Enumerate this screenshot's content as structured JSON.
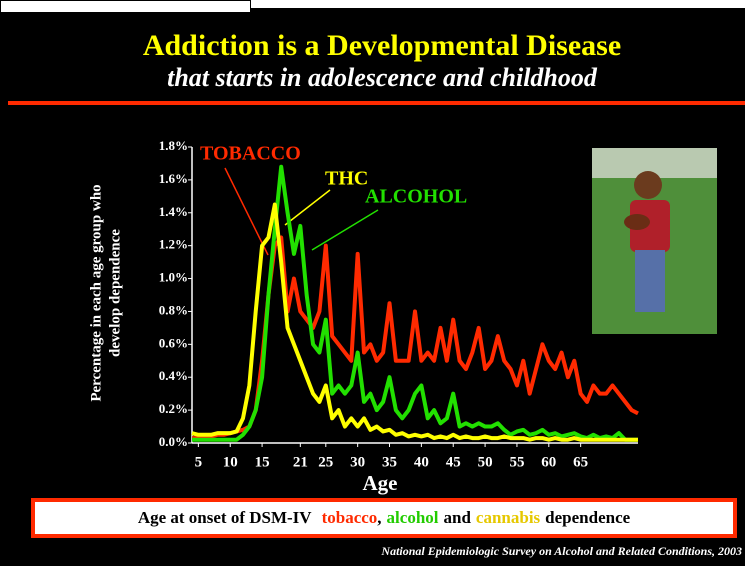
{
  "chart_data": {
    "type": "line",
    "title": "Addiction is a Developmental Disease",
    "subtitle": "that starts in adolescence and childhood",
    "ylabel": [
      "Percentage in each age group who",
      "develop dependence"
    ],
    "xlabel": "Age",
    "x": [
      4,
      5,
      6,
      7,
      8,
      9,
      10,
      11,
      12,
      13,
      14,
      15,
      16,
      17,
      18,
      19,
      20,
      21,
      22,
      23,
      24,
      25,
      26,
      27,
      28,
      29,
      30,
      31,
      32,
      33,
      34,
      35,
      36,
      37,
      38,
      39,
      40,
      41,
      42,
      43,
      44,
      45,
      46,
      47,
      48,
      49,
      50,
      51,
      52,
      53,
      54,
      55,
      56,
      57,
      58,
      59,
      60,
      61,
      62,
      63,
      64,
      65,
      66,
      67,
      68,
      69,
      70,
      71,
      72,
      73,
      74
    ],
    "series": [
      {
        "name": "TOBACCO",
        "color": "#ff2a00",
        "values": [
          0.03,
          0.03,
          0.04,
          0.04,
          0.05,
          0.05,
          0.06,
          0.07,
          0.08,
          0.1,
          0.2,
          0.5,
          0.9,
          1.2,
          1.25,
          0.8,
          1.0,
          0.8,
          0.75,
          0.7,
          0.8,
          1.2,
          0.65,
          0.6,
          0.55,
          0.5,
          1.15,
          0.55,
          0.6,
          0.5,
          0.55,
          0.85,
          0.5,
          0.5,
          0.5,
          0.8,
          0.5,
          0.55,
          0.5,
          0.7,
          0.5,
          0.75,
          0.5,
          0.45,
          0.55,
          0.7,
          0.45,
          0.5,
          0.65,
          0.5,
          0.45,
          0.35,
          0.5,
          0.3,
          0.45,
          0.6,
          0.5,
          0.45,
          0.55,
          0.4,
          0.5,
          0.3,
          0.25,
          0.35,
          0.3,
          0.3,
          0.35,
          0.3,
          0.25,
          0.2,
          0.18
        ]
      },
      {
        "name": "ALCOHOL",
        "color": "#22e000",
        "values": [
          0.02,
          0.02,
          0.02,
          0.02,
          0.02,
          0.02,
          0.02,
          0.02,
          0.05,
          0.1,
          0.2,
          0.4,
          0.9,
          1.3,
          1.68,
          1.4,
          1.15,
          1.32,
          0.9,
          0.6,
          0.55,
          0.75,
          0.3,
          0.35,
          0.3,
          0.35,
          0.55,
          0.25,
          0.3,
          0.2,
          0.25,
          0.4,
          0.2,
          0.15,
          0.2,
          0.3,
          0.35,
          0.15,
          0.2,
          0.12,
          0.15,
          0.3,
          0.1,
          0.12,
          0.1,
          0.12,
          0.1,
          0.1,
          0.12,
          0.08,
          0.05,
          0.07,
          0.08,
          0.05,
          0.06,
          0.08,
          0.05,
          0.06,
          0.04,
          0.05,
          0.06,
          0.04,
          0.03,
          0.05,
          0.03,
          0.04,
          0.03,
          0.06,
          0.02,
          0.02,
          0.02
        ]
      },
      {
        "name": "THC",
        "color": "#ffff00",
        "values": [
          0.06,
          0.05,
          0.05,
          0.05,
          0.06,
          0.06,
          0.06,
          0.07,
          0.15,
          0.35,
          0.8,
          1.2,
          1.25,
          1.45,
          1.1,
          0.7,
          0.6,
          0.5,
          0.4,
          0.3,
          0.25,
          0.35,
          0.15,
          0.2,
          0.1,
          0.15,
          0.1,
          0.15,
          0.08,
          0.1,
          0.07,
          0.08,
          0.05,
          0.06,
          0.04,
          0.05,
          0.04,
          0.05,
          0.03,
          0.04,
          0.03,
          0.05,
          0.03,
          0.04,
          0.03,
          0.03,
          0.04,
          0.03,
          0.03,
          0.04,
          0.03,
          0.03,
          0.03,
          0.02,
          0.03,
          0.03,
          0.02,
          0.03,
          0.02,
          0.02,
          0.03,
          0.02,
          0.02,
          0.02,
          0.02,
          0.02,
          0.02,
          0.02,
          0.02,
          0.02,
          0.02
        ]
      }
    ],
    "xlim": [
      4,
      74
    ],
    "xticks": [
      5,
      10,
      15,
      21,
      25,
      30,
      35,
      40,
      45,
      50,
      55,
      60,
      65
    ],
    "ylim": [
      0,
      1.8
    ],
    "yticks": [
      {
        "value": 0,
        "label": "0.0%"
      },
      {
        "value": 0.2,
        "label": "0.2%"
      },
      {
        "value": 0.4,
        "label": "0.4%"
      },
      {
        "value": 0.6,
        "label": "0.6%"
      },
      {
        "value": 0.8,
        "label": "0.8%"
      },
      {
        "value": 1.0,
        "label": "1.0%"
      },
      {
        "value": 1.2,
        "label": "1.2%"
      },
      {
        "value": 1.4,
        "label": "1.4%"
      },
      {
        "value": 1.6,
        "label": "1.6%"
      },
      {
        "value": 1.8,
        "label": "1.8%"
      }
    ],
    "caption": [
      "Age at onset of DSM-IV",
      "tobacco",
      ",",
      "alcohol",
      "and",
      "cannabis",
      "dependence"
    ],
    "source": "National Epidemiologic Survey on Alcohol and Related Conditions, 2003"
  }
}
